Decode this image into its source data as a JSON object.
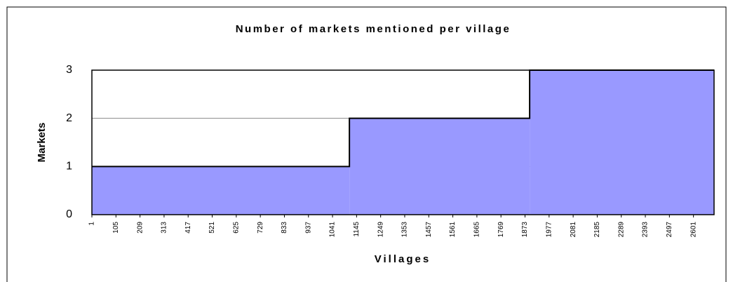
{
  "chart_data": {
    "type": "step-area",
    "title": "Number of markets mentioned per village",
    "xlabel": "Villages",
    "ylabel": "Markets",
    "x": [
      1,
      1114,
      1893
    ],
    "values": [
      1,
      2,
      3
    ],
    "color": "#9999ff",
    "xlim": [
      1,
      2690
    ],
    "xticks": [
      1,
      105,
      209,
      313,
      417,
      521,
      625,
      729,
      833,
      937,
      1041,
      1145,
      1249,
      1353,
      1457,
      1561,
      1665,
      1769,
      1873,
      1977,
      2081,
      2185,
      2289,
      2393,
      2497,
      2601
    ],
    "ylim": [
      0,
      3
    ],
    "yticks": [
      0,
      1,
      2,
      3
    ],
    "grid": true
  }
}
